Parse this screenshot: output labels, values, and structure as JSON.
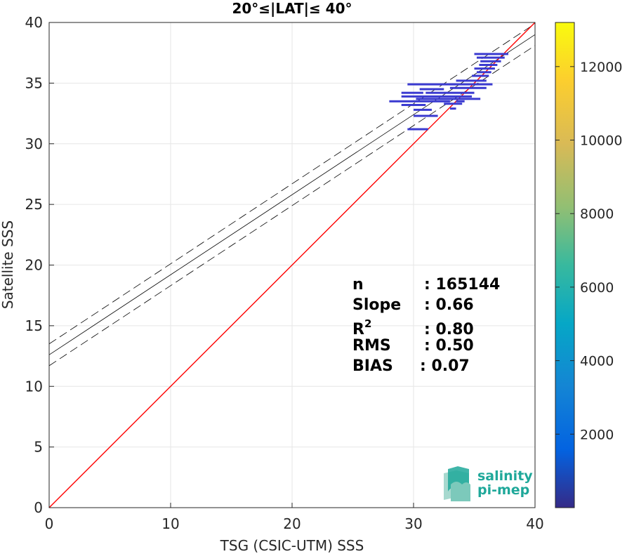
{
  "chart_data": {
    "type": "scatter",
    "title": "20°≤|LAT|≤ 40°",
    "xlabel": "TSG (CSIC-UTM) SSS",
    "ylabel": "Satellite SSS",
    "xlim": [
      0,
      40
    ],
    "ylim": [
      0,
      40
    ],
    "xticks": [
      0,
      10,
      20,
      30,
      40
    ],
    "yticks": [
      0,
      5,
      10,
      15,
      20,
      25,
      30,
      35,
      40
    ],
    "grid": true,
    "one_to_one_line": {
      "color": "#ff0000",
      "points": [
        [
          0,
          0
        ],
        [
          40,
          40
        ]
      ]
    },
    "fit_line": {
      "color": "#000000",
      "intercept": 12.6,
      "slope": 0.66
    },
    "fit_bounds": {
      "style": "dashed",
      "offset": 0.9
    },
    "density_segments": [
      {
        "x0": 35.0,
        "x1": 37.8,
        "y": 37.4
      },
      {
        "x0": 35.2,
        "x1": 37.5,
        "y": 37.1
      },
      {
        "x0": 35.5,
        "x1": 37.2,
        "y": 36.8
      },
      {
        "x0": 35.4,
        "x1": 36.9,
        "y": 36.5
      },
      {
        "x0": 35.0,
        "x1": 36.7,
        "y": 36.2
      },
      {
        "x0": 35.2,
        "x1": 36.4,
        "y": 35.9
      },
      {
        "x0": 34.8,
        "x1": 36.2,
        "y": 35.6
      },
      {
        "x0": 33.5,
        "x1": 36.0,
        "y": 35.2
      },
      {
        "x0": 29.5,
        "x1": 33.5,
        "y": 34.9
      },
      {
        "x0": 33.0,
        "x1": 36.5,
        "y": 34.9
      },
      {
        "x0": 30.5,
        "x1": 32.5,
        "y": 34.5
      },
      {
        "x0": 33.0,
        "x1": 36.0,
        "y": 34.6
      },
      {
        "x0": 29.0,
        "x1": 30.8,
        "y": 34.2
      },
      {
        "x0": 31.0,
        "x1": 35.0,
        "y": 34.2
      },
      {
        "x0": 29.0,
        "x1": 34.8,
        "y": 33.9
      },
      {
        "x0": 30.2,
        "x1": 35.5,
        "y": 33.7
      },
      {
        "x0": 28.0,
        "x1": 33.0,
        "y": 33.5
      },
      {
        "x0": 33.5,
        "x1": 34.2,
        "y": 33.5
      },
      {
        "x0": 29.0,
        "x1": 31.0,
        "y": 33.2
      },
      {
        "x0": 32.5,
        "x1": 34.0,
        "y": 33.3
      },
      {
        "x0": 30.0,
        "x1": 31.5,
        "y": 32.8
      },
      {
        "x0": 33.0,
        "x1": 33.5,
        "y": 32.9
      },
      {
        "x0": 30.0,
        "x1": 32.0,
        "y": 32.3
      },
      {
        "x0": 29.5,
        "x1": 31.2,
        "y": 31.2
      }
    ],
    "stats": [
      {
        "label": "n",
        "value": ": 165144"
      },
      {
        "label": "Slope",
        "value": ": 0.66"
      },
      {
        "label": "R",
        "sup": "2",
        "value": ": 0.80"
      },
      {
        "label": "RMS",
        "value": ": 0.50"
      },
      {
        "label": "BIAS",
        "value": ": 0.07"
      }
    ],
    "colorbar": {
      "colormap": "parula",
      "range": [
        0,
        13200
      ],
      "ticks": [
        2000,
        4000,
        6000,
        8000,
        10000,
        12000
      ],
      "tick_labels": [
        "2000",
        "4000",
        "6000",
        "8000",
        "10000",
        "12000"
      ]
    }
  },
  "logo": {
    "line1": "salinity",
    "line2": "pi-mep",
    "colors": [
      "#1fa89a",
      "#a7d9cf"
    ]
  }
}
